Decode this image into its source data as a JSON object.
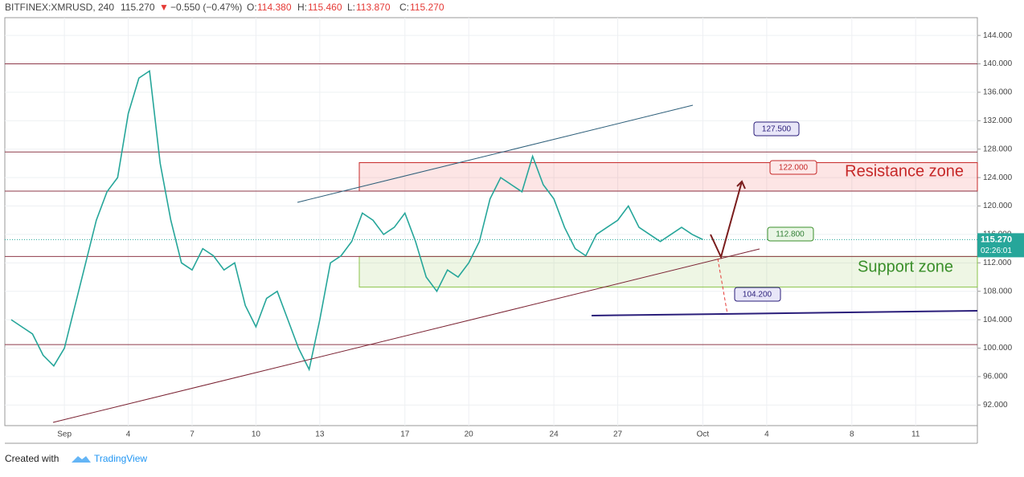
{
  "header": {
    "symbol": "BITFINEX:XMRUSD, 240",
    "last": "115.270",
    "change": "−0.550 (−0.47%)",
    "o_label": "O:",
    "o": "114.380",
    "h_label": "H:",
    "h": "115.460",
    "l_label": "L:",
    "l": "113.870",
    "c_label": "C:",
    "c": "115.270"
  },
  "chart_data": {
    "type": "line",
    "color": "#26a69a",
    "x": [
      -1.5,
      -1,
      -0.5,
      0,
      0.5,
      1,
      1.5,
      2,
      2.5,
      3,
      3.5,
      4,
      4.5,
      5,
      5.5,
      6,
      6.5,
      7,
      7.5,
      8,
      8.5,
      9,
      9.5,
      10,
      10.5,
      11,
      11.5,
      12,
      12.5,
      13,
      13.5,
      14,
      14.5,
      15,
      15.5,
      16,
      16.5,
      17,
      17.5,
      18,
      18.5,
      19,
      19.5,
      20,
      20.5,
      21,
      21.5,
      22,
      22.5,
      23,
      23.5,
      24,
      24.5,
      25,
      25.5,
      26,
      26.5,
      27,
      27.5,
      28,
      28.5,
      29,
      29.5,
      30,
      30.5,
      31
    ],
    "values": [
      104,
      103,
      102,
      99,
      97.5,
      100,
      106,
      112,
      118,
      122,
      124,
      133,
      138,
      139,
      126,
      118,
      112,
      111,
      114,
      113,
      111,
      112,
      106,
      103,
      107,
      108,
      104,
      100,
      97,
      104,
      112,
      113,
      115,
      119,
      118,
      116,
      117,
      119,
      115,
      110,
      108,
      111,
      110,
      112,
      115,
      121,
      124,
      123,
      122,
      127,
      123,
      121,
      117,
      114,
      113,
      116,
      117,
      118,
      120,
      117,
      116,
      115,
      116,
      117,
      116,
      115.27
    ],
    "xlim": [
      -1.8,
      43.9
    ],
    "ylim": [
      89.1,
      146.5
    ],
    "yticks": [
      {
        "value": 92,
        "label": "92.000"
      },
      {
        "value": 96,
        "label": "96.000"
      },
      {
        "value": 100,
        "label": "100.000"
      },
      {
        "value": 104,
        "label": "104.000"
      },
      {
        "value": 108,
        "label": "108.000"
      },
      {
        "value": 112,
        "label": "112.000"
      },
      {
        "value": 116,
        "label": "116.000"
      },
      {
        "value": 120,
        "label": "120.000"
      },
      {
        "value": 124,
        "label": "124.000"
      },
      {
        "value": 128,
        "label": "128.000"
      },
      {
        "value": 132,
        "label": "132.000"
      },
      {
        "value": 136,
        "label": "136.000"
      },
      {
        "value": 140,
        "label": "140.000"
      },
      {
        "value": 144,
        "label": "144.000"
      }
    ],
    "xticks": [
      {
        "value": 1,
        "label": "Sep"
      },
      4,
      7,
      10,
      13,
      17,
      20,
      24,
      27,
      {
        "value": 31,
        "label": "Oct"
      },
      {
        "value": 34,
        "label": "4"
      },
      {
        "value": 38,
        "label": "8"
      },
      {
        "value": 41,
        "label": "11"
      }
    ],
    "hlines": [
      140,
      127.6,
      122.1,
      112.9,
      100.5
    ],
    "resistance_zone": [
      122.1,
      126.1
    ],
    "support_zone": [
      108.6,
      112.9
    ],
    "current_price": {
      "value": 115.27,
      "label": "115.270"
    },
    "countdown": "02:26:01",
    "annotations": {
      "a1": "127.500",
      "a2": "122.000",
      "a3": "112.800",
      "a4": "104.200",
      "resistance": "Resistance zone",
      "support": "Support zone"
    }
  },
  "footer": {
    "created": "Created with",
    "brand": "TradingView"
  }
}
